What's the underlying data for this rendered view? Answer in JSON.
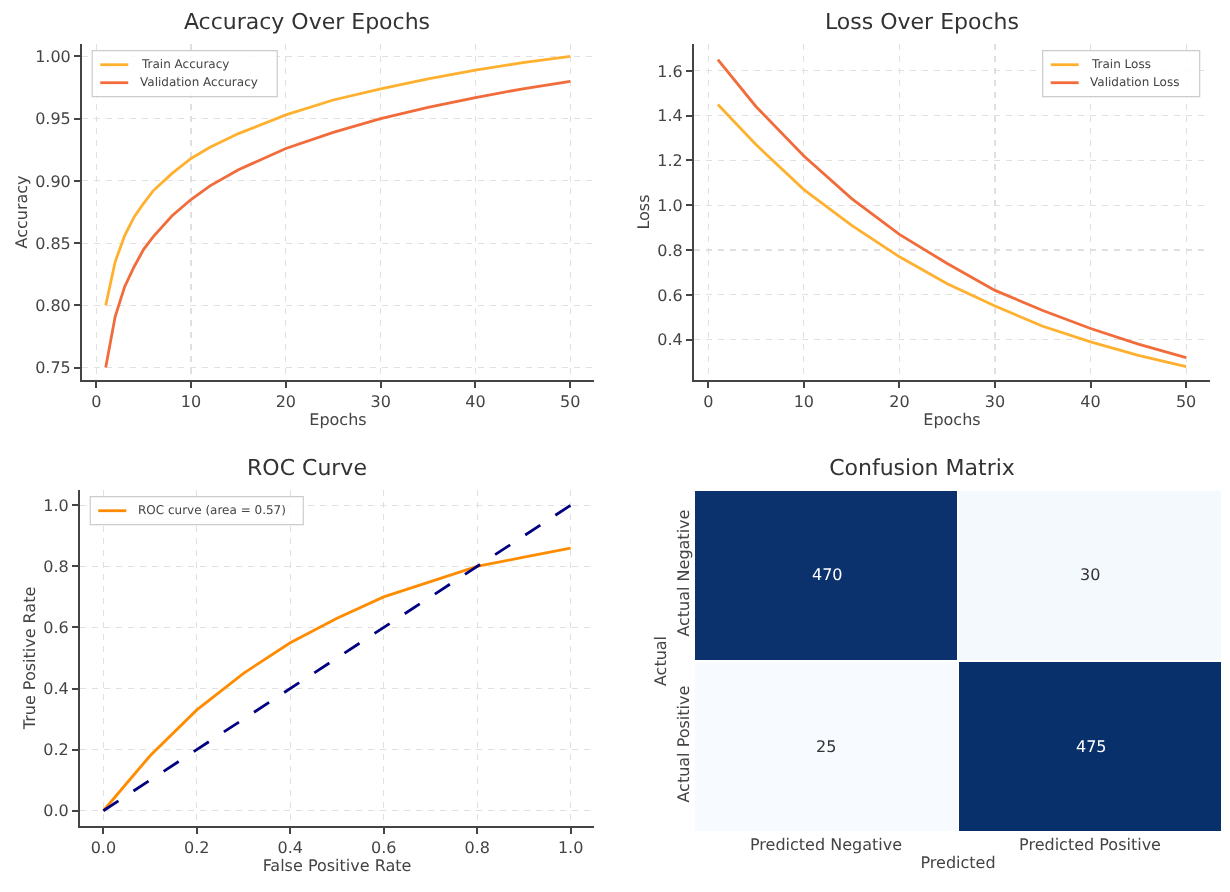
{
  "chart_data": [
    {
      "type": "line",
      "title": "Accuracy Over Epochs",
      "xlabel": "Epochs",
      "ylabel": "Accuracy",
      "x": [
        1,
        2,
        3,
        4,
        5,
        6,
        8,
        10,
        12,
        15,
        20,
        25,
        30,
        35,
        40,
        45,
        50
      ],
      "series": [
        {
          "name": "Train Accuracy",
          "color": "#ffb02e",
          "values": [
            0.8,
            0.835,
            0.856,
            0.871,
            0.882,
            0.892,
            0.906,
            0.918,
            0.927,
            0.938,
            0.953,
            0.965,
            0.974,
            0.982,
            0.989,
            0.995,
            1.0
          ]
        },
        {
          "name": "Validation Accuracy",
          "color": "#f26b3a",
          "values": [
            0.75,
            0.791,
            0.815,
            0.831,
            0.845,
            0.855,
            0.872,
            0.885,
            0.896,
            0.909,
            0.926,
            0.939,
            0.95,
            0.959,
            0.967,
            0.974,
            0.98
          ]
        }
      ],
      "xlim": [
        -1.5,
        52.5
      ],
      "xticks": [
        0,
        10,
        20,
        30,
        40,
        50
      ],
      "ylim": [
        0.74,
        1.01
      ],
      "yticks": [
        0.75,
        {
          "value": 0.8,
          "label": "0.80"
        },
        0.85,
        {
          "value": 0.9,
          "label": "0.90"
        },
        0.95,
        {
          "value": 1,
          "label": "1.00"
        }
      ],
      "grid": true,
      "legend": "top left"
    },
    {
      "type": "line",
      "title": "Loss Over Epochs",
      "xlabel": "Epochs",
      "ylabel": "Loss",
      "x": [
        1,
        5,
        10,
        15,
        20,
        25,
        30,
        35,
        40,
        45,
        50
      ],
      "series": [
        {
          "name": "Train Loss",
          "color": "#ffb02e",
          "values": [
            1.45,
            1.27,
            1.07,
            0.91,
            0.77,
            0.65,
            0.55,
            0.46,
            0.39,
            0.33,
            0.28
          ]
        },
        {
          "name": "Validation Loss",
          "color": "#f26b3a",
          "values": [
            1.65,
            1.44,
            1.22,
            1.03,
            0.87,
            0.74,
            0.62,
            0.53,
            0.45,
            0.38,
            0.32
          ]
        }
      ],
      "xlim": [
        -1.5,
        52.5
      ],
      "xticks": [
        0,
        10,
        20,
        30,
        40,
        50
      ],
      "ylim": [
        0.22,
        1.72
      ],
      "yticks": [
        0.4,
        0.6,
        0.8,
        {
          "value": 1,
          "label": "1.0"
        },
        1.2,
        1.4,
        1.6
      ],
      "grid": true,
      "legend": "top right"
    },
    {
      "type": "line",
      "title": "ROC Curve",
      "xlabel": "False Positive Rate",
      "ylabel": "True Positive Rate",
      "series": [
        {
          "name": "ROC curve (area = 0.57)",
          "color": "#ff8c00",
          "x": [
            0,
            0.05,
            0.1,
            0.2,
            0.3,
            0.4,
            0.5,
            0.6,
            0.7,
            0.8,
            0.9,
            1.0
          ],
          "values": [
            0,
            0.09,
            0.18,
            0.33,
            0.45,
            0.55,
            0.63,
            0.7,
            0.75,
            0.8,
            0.83,
            0.86
          ]
        },
        {
          "color": "#000080",
          "line_style": "dashed",
          "x": [
            0,
            1
          ],
          "values": [
            0,
            1
          ]
        }
      ],
      "xlim": [
        -0.05,
        1.05
      ],
      "xticks": [
        {
          "value": 0,
          "label": "0.0"
        },
        0.2,
        0.4,
        0.6,
        0.8,
        {
          "value": 1,
          "label": "1.0"
        }
      ],
      "ylim": [
        -0.05,
        1.05
      ],
      "yticks": [
        {
          "value": 0,
          "label": "0.0"
        },
        0.2,
        0.4,
        0.6,
        0.8,
        {
          "value": 1,
          "label": "1.0"
        }
      ],
      "grid": true,
      "legend": "top left"
    },
    {
      "type": "heatmap",
      "title": "Confusion Matrix",
      "xlabel": "Predicted",
      "ylabel": "Actual",
      "categories": [
        "Predicted Negative",
        "Predicted Positive"
      ],
      "y_categories": [
        "Actual Negative",
        "Actual Positive"
      ],
      "cells": [
        [
          470,
          30
        ],
        [
          25,
          475
        ]
      ],
      "data_labels": true
    }
  ]
}
